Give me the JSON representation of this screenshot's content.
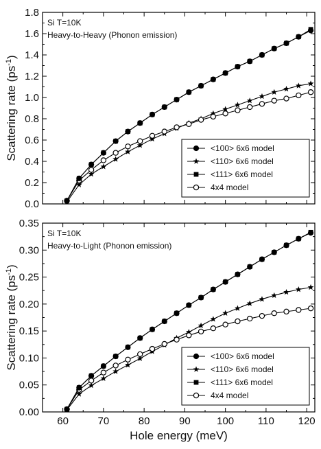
{
  "chart_data": [
    {
      "type": "line",
      "annotation_lines": [
        "Si T=10K",
        "Heavy-to-Heavy (Phonon emission)"
      ],
      "ylabel": "Scattering rate (ps",
      "ylabel_sup": "-1",
      "ylabel_close": ")",
      "xlim": [
        55,
        122
      ],
      "ylim": [
        0.0,
        1.8
      ],
      "yticks": [
        "0.0",
        "0.2",
        "0.4",
        "0.6",
        "0.8",
        "1.0",
        "1.2",
        "1.4",
        "1.6",
        "1.8"
      ],
      "legend_position": "bottom-right",
      "x": [
        61,
        64,
        67,
        70,
        73,
        76,
        79,
        82,
        85,
        88,
        91,
        94,
        97,
        100,
        103,
        106,
        109,
        112,
        115,
        118,
        121
      ],
      "series": [
        {
          "name": "<100> 6x6 model",
          "marker": "circle-filled",
          "values": [
            0.03,
            0.24,
            0.37,
            0.48,
            0.59,
            0.68,
            0.76,
            0.84,
            0.91,
            0.98,
            1.05,
            1.11,
            1.17,
            1.23,
            1.29,
            1.34,
            1.4,
            1.46,
            1.51,
            1.57,
            1.63
          ]
        },
        {
          "name": "<110> 6x6 model",
          "marker": "star",
          "values": [
            0.02,
            0.18,
            0.28,
            0.35,
            0.42,
            0.49,
            0.55,
            0.61,
            0.66,
            0.71,
            0.76,
            0.8,
            0.85,
            0.89,
            0.93,
            0.97,
            1.01,
            1.05,
            1.08,
            1.11,
            1.13
          ]
        },
        {
          "name": "<111> 6x6 model",
          "marker": "square-filled",
          "values": [
            0.03,
            0.24,
            0.37,
            0.48,
            0.59,
            0.68,
            0.76,
            0.84,
            0.91,
            0.98,
            1.05,
            1.11,
            1.17,
            1.23,
            1.29,
            1.34,
            1.4,
            1.46,
            1.51,
            1.57,
            1.64
          ]
        },
        {
          "name": "4x4 model",
          "marker": "circle-open",
          "values": [
            0.03,
            0.22,
            0.32,
            0.41,
            0.48,
            0.54,
            0.59,
            0.64,
            0.68,
            0.72,
            0.75,
            0.79,
            0.82,
            0.85,
            0.88,
            0.91,
            0.94,
            0.97,
            0.99,
            1.02,
            1.05
          ]
        }
      ]
    },
    {
      "type": "line",
      "annotation_lines": [
        "Si T=10K",
        "Heavy-to-Light (Phonon emission)"
      ],
      "ylabel": "Scattering rate (ps",
      "ylabel_sup": "-1",
      "ylabel_close": ")",
      "xlabel": "Hole energy (meV)",
      "xlim": [
        55,
        122
      ],
      "ylim": [
        0.0,
        0.35
      ],
      "xticks": [
        "60",
        "70",
        "80",
        "90",
        "100",
        "110",
        "120"
      ],
      "yticks": [
        "0.00",
        "0.05",
        "0.10",
        "0.15",
        "0.20",
        "0.25",
        "0.30",
        "0.35"
      ],
      "legend_position": "bottom-right",
      "x": [
        61,
        64,
        67,
        70,
        73,
        76,
        79,
        82,
        85,
        88,
        91,
        94,
        97,
        100,
        103,
        106,
        109,
        112,
        115,
        118,
        121
      ],
      "series": [
        {
          "name": "<100> 6x6 model",
          "marker": "circle-filled",
          "values": [
            0.005,
            0.045,
            0.067,
            0.085,
            0.103,
            0.12,
            0.137,
            0.153,
            0.168,
            0.183,
            0.198,
            0.212,
            0.227,
            0.241,
            0.255,
            0.269,
            0.283,
            0.296,
            0.309,
            0.321,
            0.332
          ]
        },
        {
          "name": "<110> 6x6 model",
          "marker": "star",
          "values": [
            0.004,
            0.033,
            0.049,
            0.062,
            0.075,
            0.087,
            0.099,
            0.112,
            0.124,
            0.137,
            0.148,
            0.16,
            0.172,
            0.183,
            0.192,
            0.201,
            0.209,
            0.216,
            0.222,
            0.227,
            0.231
          ]
        },
        {
          "name": "<111> 6x6 model",
          "marker": "square-filled",
          "values": [
            0.005,
            0.045,
            0.067,
            0.085,
            0.103,
            0.12,
            0.137,
            0.153,
            0.168,
            0.183,
            0.198,
            0.212,
            0.227,
            0.241,
            0.255,
            0.269,
            0.283,
            0.296,
            0.309,
            0.321,
            0.333
          ]
        },
        {
          "name": "4x4 model",
          "marker": "circle-open",
          "values": [
            0.005,
            0.041,
            0.058,
            0.073,
            0.086,
            0.097,
            0.107,
            0.117,
            0.126,
            0.134,
            0.142,
            0.149,
            0.155,
            0.162,
            0.168,
            0.173,
            0.178,
            0.183,
            0.186,
            0.189,
            0.192
          ]
        }
      ]
    }
  ]
}
